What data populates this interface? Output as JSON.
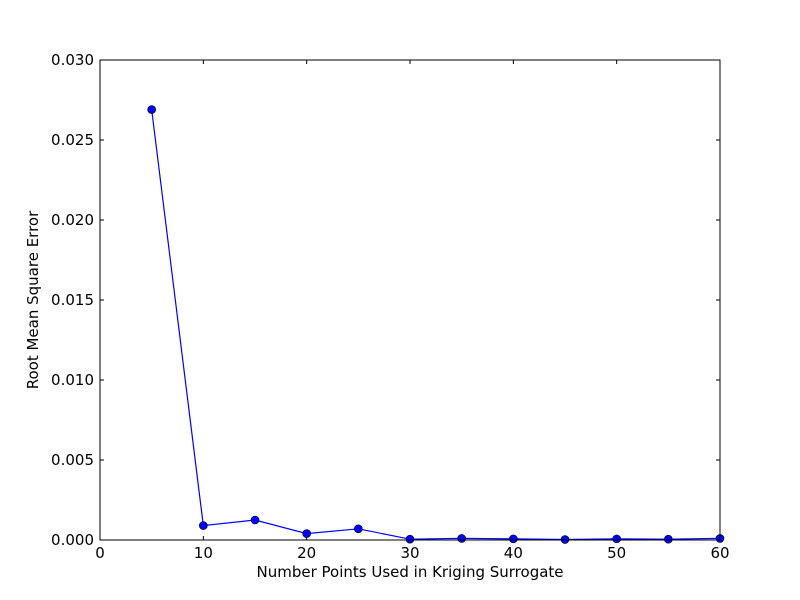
{
  "chart_data": {
    "type": "line",
    "title": "",
    "xlabel": "Number Points Used in Kriging Surrogate",
    "ylabel": "Root Mean Square Error",
    "xlim": [
      0,
      60
    ],
    "ylim": [
      0,
      0.03
    ],
    "x_ticks": [
      0,
      10,
      20,
      30,
      40,
      50,
      60
    ],
    "x_tick_labels": [
      "0",
      "10",
      "20",
      "30",
      "40",
      "50",
      "60"
    ],
    "y_ticks": [
      0,
      0.005,
      0.01,
      0.015,
      0.02,
      0.025,
      0.03
    ],
    "y_tick_labels": [
      "0.000",
      "0.005",
      "0.010",
      "0.015",
      "0.020",
      "0.025",
      "0.030"
    ],
    "grid": false,
    "series": [
      {
        "color": "#0000ff",
        "marker": "circle",
        "x": [
          5,
          10,
          15,
          20,
          25,
          30,
          35,
          40,
          45,
          50,
          55,
          60
        ],
        "y": [
          0.0269,
          0.0009,
          0.00125,
          0.0004,
          0.0007,
          5e-05,
          0.0001,
          7e-05,
          3e-05,
          7e-05,
          5e-05,
          0.0001
        ]
      }
    ]
  }
}
